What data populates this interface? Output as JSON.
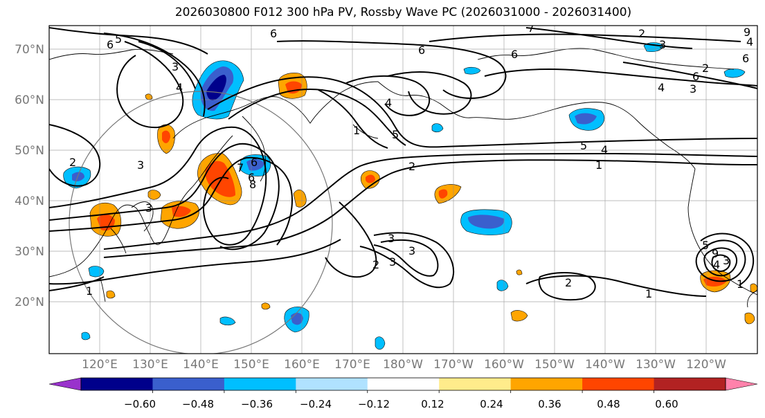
{
  "title": "2026030800 F012 300 hPa PV, Rossby Wave PC (2026031000 - 2026031400)",
  "lat_labels": [
    "70°N",
    "60°N",
    "50°N",
    "40°N",
    "30°N",
    "20°N"
  ],
  "lon_labels": [
    "120°E",
    "130°E",
    "140°E",
    "150°E",
    "160°E",
    "170°E",
    "180°W",
    "170°W",
    "160°W",
    "150°W",
    "140°W",
    "130°W",
    "120°W"
  ],
  "colorbar": {
    "colors": [
      "#9932cc",
      "#00008b",
      "#3a5fcd",
      "#00bfff",
      "#b0e2ff",
      "#ffffff",
      "#ffec8b",
      "#ffa500",
      "#ff4500",
      "#b22222",
      "#ff82ab"
    ],
    "tick_labels": [
      "−0.60",
      "−0.48",
      "−0.36",
      "−0.24",
      "−0.12",
      "0.12",
      "0.24",
      "0.36",
      "0.48",
      "0.60"
    ]
  },
  "contour_labels": [
    "6",
    "5",
    "6",
    "7",
    "6",
    "2",
    "3",
    "9",
    "4",
    "6",
    "3",
    "4",
    "6",
    "3",
    "4",
    "4",
    "5",
    "5",
    "4",
    "1",
    "1",
    "2",
    "2",
    "3",
    "3",
    "6",
    "7",
    "6",
    "8",
    "3",
    "3",
    "2",
    "3",
    "2",
    "1",
    "1",
    "1",
    "5",
    "9",
    "3",
    "4",
    "2",
    "6"
  ],
  "shading": {
    "pos_color_low": "#ffa500",
    "pos_color_mid": "#ff4500",
    "neg_color_low": "#00bfff",
    "neg_color_mid": "#3a5fcd",
    "neg_color_high": "#00008b"
  }
}
